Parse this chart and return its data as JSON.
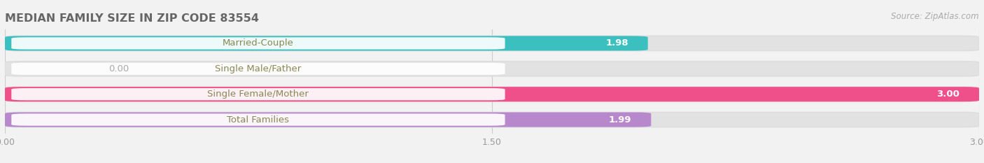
{
  "title": "MEDIAN FAMILY SIZE IN ZIP CODE 83554",
  "source_text": "Source: ZipAtlas.com",
  "categories": [
    "Married-Couple",
    "Single Male/Father",
    "Single Female/Mother",
    "Total Families"
  ],
  "values": [
    1.98,
    0.0,
    3.0,
    1.99
  ],
  "bar_colors": [
    "#3bbfbf",
    "#a0b0e8",
    "#f0508a",
    "#b888cc"
  ],
  "label_pill_color": "#ffffff",
  "background_color": "#f2f2f2",
  "bar_background_color": "#e2e2e2",
  "xlim": [
    0.0,
    3.0
  ],
  "xticks": [
    0.0,
    1.5,
    3.0
  ],
  "bar_height": 0.58,
  "label_fontsize": 9.5,
  "title_fontsize": 11.5,
  "label_text_color": "#888855",
  "value_label_color_inside": "#ffffff",
  "value_label_color_outside": "#aaaaaa",
  "source_fontsize": 8.5
}
